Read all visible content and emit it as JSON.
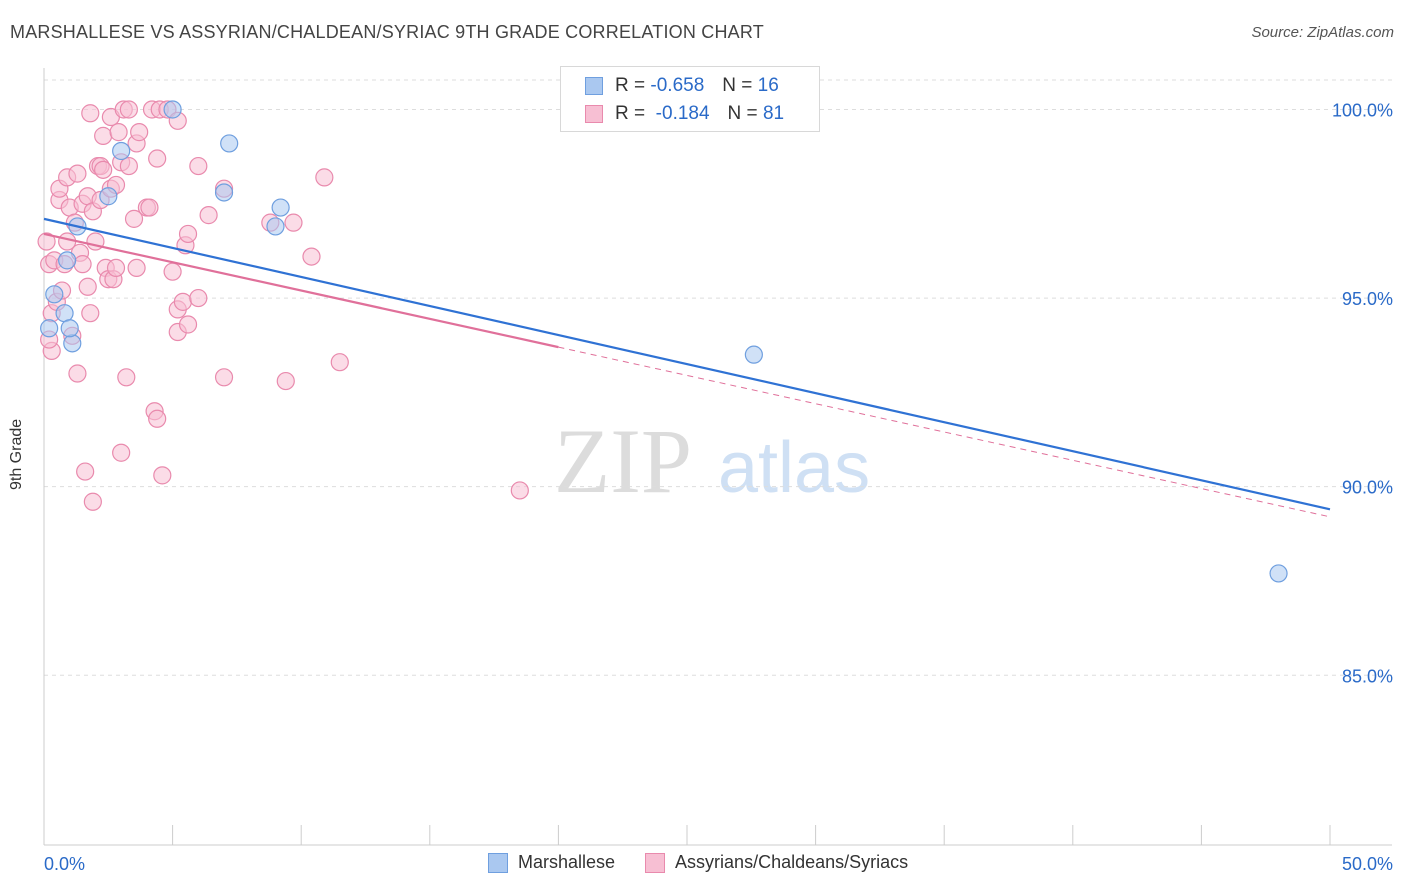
{
  "title": "MARSHALLESE VS ASSYRIAN/CHALDEAN/SYRIAC 9TH GRADE CORRELATION CHART",
  "source": "Source: ZipAtlas.com",
  "watermark": {
    "zip": "ZIP",
    "atlas": "atlas"
  },
  "legend": {
    "rows": [
      {
        "r_label": "R =",
        "r_value": "-0.658",
        "n_label": "N =",
        "n_value": "16",
        "color": "#aac8f0",
        "stroke": "#6f9fdf"
      },
      {
        "r_label": "R =",
        "r_value": "-0.184",
        "n_label": "N =",
        "n_value": "81",
        "color": "#f7bfd3",
        "stroke": "#e98aad"
      }
    ]
  },
  "bottom_legend": [
    {
      "label": "Marshallese",
      "color": "#aac8f0",
      "stroke": "#6f9fdf"
    },
    {
      "label": "Assyrians/Chaldeans/Syriacs",
      "color": "#f7bfd3",
      "stroke": "#e98aad"
    }
  ],
  "chart_data": {
    "type": "scatter",
    "title": "MARSHALLESE VS ASSYRIAN/CHALDEAN/SYRIAC 9TH GRADE CORRELATION CHART",
    "xlabel": "",
    "ylabel": "9th Grade",
    "xlim": [
      0,
      50
    ],
    "ylim": [
      80.5,
      101.1
    ],
    "x_tick_labels": [
      "0.0%",
      "50.0%"
    ],
    "y_ticks": [
      85,
      90,
      95,
      100
    ],
    "y_tick_labels": [
      "85.0%",
      "90.0%",
      "95.0%",
      "100.0%"
    ],
    "grid": true,
    "legend_position": "top-center",
    "series": [
      {
        "name": "Marshallese",
        "color": "#6f9fdf",
        "fill": "#aac8f0",
        "points": [
          [
            0.2,
            94.2
          ],
          [
            0.4,
            95.1
          ],
          [
            0.8,
            94.6
          ],
          [
            0.9,
            96.0
          ],
          [
            1.1,
            93.8
          ],
          [
            1.3,
            96.9
          ],
          [
            2.5,
            97.7
          ],
          [
            3.0,
            98.9
          ],
          [
            5.0,
            100.0
          ],
          [
            7.0,
            97.8
          ],
          [
            7.2,
            99.1
          ],
          [
            9.0,
            96.9
          ],
          [
            9.2,
            97.4
          ],
          [
            27.6,
            93.5
          ],
          [
            48.0,
            87.7
          ],
          [
            1.0,
            94.2
          ]
        ],
        "trend": {
          "x0": 0.0,
          "y0": 97.1,
          "x1": 50.0,
          "y1": 89.4
        }
      },
      {
        "name": "Assyrians/Chaldeans/Syriacs",
        "color": "#e98aad",
        "fill": "#f7bfd3",
        "points": [
          [
            0.1,
            96.5
          ],
          [
            0.2,
            95.9
          ],
          [
            0.3,
            94.6
          ],
          [
            0.3,
            93.6
          ],
          [
            0.4,
            96.0
          ],
          [
            0.5,
            94.9
          ],
          [
            0.6,
            97.6
          ],
          [
            0.6,
            97.9
          ],
          [
            0.7,
            95.2
          ],
          [
            0.8,
            95.9
          ],
          [
            0.9,
            96.5
          ],
          [
            0.9,
            98.2
          ],
          [
            1.0,
            97.4
          ],
          [
            1.1,
            94.0
          ],
          [
            1.2,
            97.0
          ],
          [
            1.3,
            93.0
          ],
          [
            1.3,
            98.3
          ],
          [
            1.4,
            96.2
          ],
          [
            1.5,
            95.9
          ],
          [
            1.5,
            97.5
          ],
          [
            1.6,
            90.4
          ],
          [
            1.7,
            95.3
          ],
          [
            1.7,
            97.7
          ],
          [
            1.8,
            99.9
          ],
          [
            1.8,
            94.6
          ],
          [
            1.9,
            89.6
          ],
          [
            1.9,
            97.3
          ],
          [
            2.0,
            96.5
          ],
          [
            2.1,
            98.5
          ],
          [
            2.2,
            98.5
          ],
          [
            2.2,
            97.6
          ],
          [
            2.3,
            98.4
          ],
          [
            2.3,
            99.3
          ],
          [
            2.4,
            95.8
          ],
          [
            2.5,
            95.5
          ],
          [
            2.6,
            97.9
          ],
          [
            2.6,
            99.8
          ],
          [
            2.7,
            95.5
          ],
          [
            2.8,
            95.8
          ],
          [
            2.8,
            98.0
          ],
          [
            2.9,
            99.4
          ],
          [
            3.0,
            98.6
          ],
          [
            3.0,
            90.9
          ],
          [
            3.1,
            100.0
          ],
          [
            3.2,
            92.9
          ],
          [
            3.3,
            98.5
          ],
          [
            3.3,
            100.0
          ],
          [
            3.5,
            97.1
          ],
          [
            3.6,
            95.8
          ],
          [
            3.6,
            99.1
          ],
          [
            3.7,
            99.4
          ],
          [
            4.0,
            97.4
          ],
          [
            4.1,
            97.4
          ],
          [
            4.2,
            100.0
          ],
          [
            4.3,
            92.0
          ],
          [
            4.4,
            91.8
          ],
          [
            4.4,
            98.7
          ],
          [
            4.5,
            100.0
          ],
          [
            4.6,
            90.3
          ],
          [
            4.8,
            100.0
          ],
          [
            5.0,
            95.7
          ],
          [
            5.2,
            94.7
          ],
          [
            5.2,
            94.1
          ],
          [
            5.2,
            99.7
          ],
          [
            5.4,
            94.9
          ],
          [
            5.5,
            96.4
          ],
          [
            5.6,
            94.3
          ],
          [
            5.6,
            96.7
          ],
          [
            6.0,
            95.0
          ],
          [
            6.0,
            98.5
          ],
          [
            6.4,
            97.2
          ],
          [
            7.0,
            97.9
          ],
          [
            7.0,
            92.9
          ],
          [
            8.8,
            97.0
          ],
          [
            9.4,
            92.8
          ],
          [
            9.7,
            97.0
          ],
          [
            10.4,
            96.1
          ],
          [
            10.9,
            98.2
          ],
          [
            11.5,
            93.3
          ],
          [
            18.5,
            89.9
          ],
          [
            0.2,
            93.9
          ]
        ],
        "trend": {
          "x0": 0.0,
          "y0": 96.7,
          "x1": 20.0,
          "y1": 93.7
        },
        "trend_dashed": {
          "x0": 20.0,
          "y0": 93.7,
          "x1": 50.0,
          "y1": 89.2
        }
      }
    ]
  }
}
